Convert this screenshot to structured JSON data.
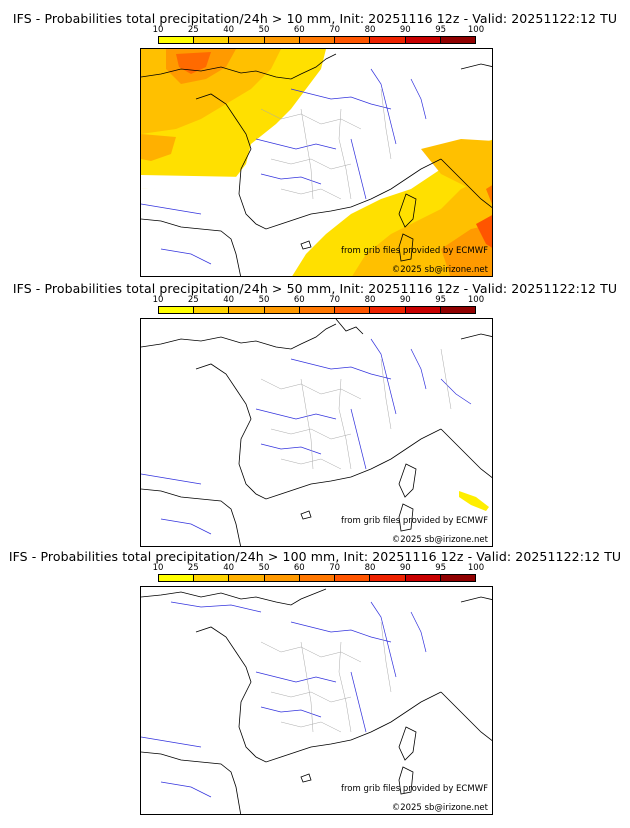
{
  "colorbar": {
    "ticks": [
      "10",
      "25",
      "40",
      "50",
      "60",
      "70",
      "80",
      "90",
      "95",
      "100"
    ],
    "colors": [
      "#ffff00",
      "#ffd400",
      "#ffb000",
      "#ff9900",
      "#ff7700",
      "#ff5500",
      "#ee2200",
      "#c80000",
      "#900000",
      "#5a0000"
    ]
  },
  "panels": [
    {
      "title": "IFS - Probabilities total precipitation/24h > 10 mm, Init: 20251116 12z - Valid: 20251122:12 TU",
      "source_credit": "from grib files provided by ECMWF",
      "copyright": "©2025 sb@irizone.net"
    },
    {
      "title": "IFS - Probabilities total precipitation/24h > 50 mm, Init: 20251116 12z - Valid: 20251122:12 TU",
      "source_credit": "from grib files provided by ECMWF",
      "copyright": "©2025 sb@irizone.net"
    },
    {
      "title": "IFS - Probabilities total precipitation/24h > 100 mm, Init: 20251116 12z - Valid: 20251122:12 TU",
      "source_credit": "from grib files provided by ECMWF",
      "copyright": "©2025 sb@irizone.net"
    }
  ],
  "colors": {
    "coast": "#000000",
    "rivers": "#3333dd",
    "borders": "#aaaaaa",
    "prob_low": "#ffee00",
    "prob_mid": "#ffb000",
    "prob_high": "#ff5500"
  }
}
